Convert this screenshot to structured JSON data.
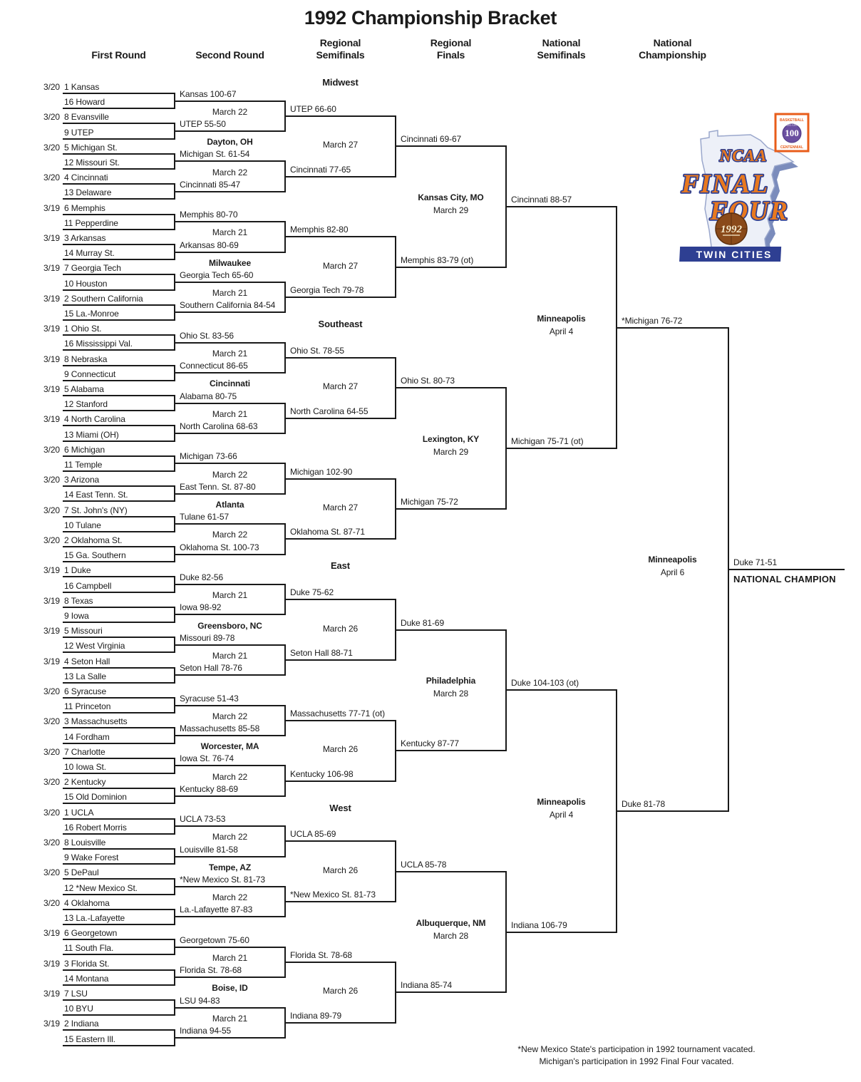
{
  "title": "1992 Championship Bracket",
  "column_headers": [
    {
      "lines": [
        "First Round"
      ]
    },
    {
      "lines": [
        "Second Round"
      ]
    },
    {
      "lines": [
        "Regional",
        "Semifinals"
      ]
    },
    {
      "lines": [
        "Regional",
        "Finals"
      ]
    },
    {
      "lines": [
        "National",
        "Semifinals"
      ]
    },
    {
      "lines": [
        "National",
        "Championship"
      ]
    }
  ],
  "regions": [
    {
      "name": "Midwest",
      "games": [
        {
          "date": "3/20",
          "team1": "1 Kansas",
          "team2": "16 Howard",
          "winner": "Kansas 100-67"
        },
        {
          "date": "3/20",
          "team1": "8 Evansville",
          "team2": "9 UTEP",
          "winner": "UTEP 55-50"
        },
        {
          "date": "3/20",
          "team1": "5 Michigan St.",
          "team2": "12 Missouri St.",
          "winner": "Michigan St. 61-54"
        },
        {
          "date": "3/20",
          "team1": "4 Cincinnati",
          "team2": "13 Delaware",
          "winner": "Cincinnati 85-47"
        },
        {
          "date": "3/19",
          "team1": "6 Memphis",
          "team2": "11 Pepperdine",
          "winner": "Memphis 80-70"
        },
        {
          "date": "3/19",
          "team1": "3 Arkansas",
          "team2": "14 Murray St.",
          "winner": "Arkansas 80-69"
        },
        {
          "date": "3/19",
          "team1": "7 Georgia Tech",
          "team2": "10 Houston",
          "winner": "Georgia Tech 65-60"
        },
        {
          "date": "3/19",
          "team1": "2 Southern California",
          "team2": "15 La.-Monroe",
          "winner": "Southern California 84-54"
        }
      ],
      "round2": [
        {
          "date": "March 22",
          "winner": "UTEP 66-60"
        },
        {
          "date": "March 22",
          "winner": "Cincinnati 77-65"
        },
        {
          "date": "March 21",
          "winner": "Memphis 82-80"
        },
        {
          "date": "March 21",
          "winner": "Georgia Tech 79-78"
        }
      ],
      "semifinals": [
        {
          "site": "Dayton, OH",
          "date": "March 27",
          "winner": "Cincinnati 69-67"
        },
        {
          "site": "Milwaukee",
          "date": "March 27",
          "winner": "Memphis 83-79 (ot)"
        }
      ],
      "final": {
        "site_lines": [
          "Kansas City, MO",
          "March 29"
        ],
        "winner": "Cincinnati 88-57"
      }
    },
    {
      "name": "Southeast",
      "games": [
        {
          "date": "3/19",
          "team1": "1 Ohio St.",
          "team2": "16 Mississippi Val.",
          "winner": "Ohio St. 83-56"
        },
        {
          "date": "3/19",
          "team1": "8 Nebraska",
          "team2": "9 Connecticut",
          "winner": "Connecticut 86-65"
        },
        {
          "date": "3/19",
          "team1": "5 Alabama",
          "team2": "12 Stanford",
          "winner": "Alabama 80-75"
        },
        {
          "date": "3/19",
          "team1": "4 North Carolina",
          "team2": "13 Miami (OH)",
          "winner": "North Carolina 68-63"
        },
        {
          "date": "3/20",
          "team1": "6 Michigan",
          "team2": "11 Temple",
          "winner": "Michigan 73-66"
        },
        {
          "date": "3/20",
          "team1": "3 Arizona",
          "team2": "14 East Tenn. St.",
          "winner": "East Tenn. St. 87-80"
        },
        {
          "date": "3/20",
          "team1": "7 St. John's (NY)",
          "team2": "10 Tulane",
          "winner": "Tulane 61-57"
        },
        {
          "date": "3/20",
          "team1": "2 Oklahoma St.",
          "team2": "15 Ga. Southern",
          "winner": "Oklahoma St. 100-73"
        }
      ],
      "round2": [
        {
          "date": "March 21",
          "winner": "Ohio St. 78-55"
        },
        {
          "date": "March 21",
          "winner": "North Carolina 64-55"
        },
        {
          "date": "March 22",
          "winner": "Michigan 102-90"
        },
        {
          "date": "March 22",
          "winner": "Oklahoma St. 87-71"
        }
      ],
      "semifinals": [
        {
          "site": "Cincinnati",
          "date": "March 27",
          "winner": "Ohio St. 80-73"
        },
        {
          "site": "Atlanta",
          "date": "March 27",
          "winner": "Michigan 75-72"
        }
      ],
      "final": {
        "site_lines": [
          "Lexington, KY",
          "March 29"
        ],
        "winner": "Michigan 75-71 (ot)"
      }
    },
    {
      "name": "East",
      "games": [
        {
          "date": "3/19",
          "team1": "1 Duke",
          "team2": "16 Campbell",
          "winner": "Duke 82-56"
        },
        {
          "date": "3/19",
          "team1": "8 Texas",
          "team2": "9 Iowa",
          "winner": "Iowa 98-92"
        },
        {
          "date": "3/19",
          "team1": "5 Missouri",
          "team2": "12 West Virginia",
          "winner": "Missouri 89-78"
        },
        {
          "date": "3/19",
          "team1": "4 Seton Hall",
          "team2": "13 La Salle",
          "winner": "Seton Hall 78-76"
        },
        {
          "date": "3/20",
          "team1": "6 Syracuse",
          "team2": "11 Princeton",
          "winner": "Syracuse 51-43"
        },
        {
          "date": "3/20",
          "team1": "3 Massachusetts",
          "team2": "14 Fordham",
          "winner": "Massachusetts 85-58"
        },
        {
          "date": "3/20",
          "team1": "7 Charlotte",
          "team2": "10 Iowa St.",
          "winner": "Iowa St. 76-74"
        },
        {
          "date": "3/20",
          "team1": "2 Kentucky",
          "team2": "15 Old Dominion",
          "winner": "Kentucky 88-69"
        }
      ],
      "round2": [
        {
          "date": "March 21",
          "winner": "Duke 75-62"
        },
        {
          "date": "March 21",
          "winner": "Seton Hall 88-71"
        },
        {
          "date": "March 22",
          "winner": "Massachusetts 77-71 (ot)"
        },
        {
          "date": "March 22",
          "winner": "Kentucky 106-98"
        }
      ],
      "semifinals": [
        {
          "site": "Greensboro, NC",
          "date": "March 26",
          "winner": "Duke 81-69"
        },
        {
          "site": "Worcester, MA",
          "date": "March 26",
          "winner": "Kentucky 87-77"
        }
      ],
      "final": {
        "site_lines": [
          "Philadelphia",
          "March 28"
        ],
        "winner": "Duke 104-103 (ot)"
      }
    },
    {
      "name": "West",
      "games": [
        {
          "date": "3/20",
          "team1": "1 UCLA",
          "team2": "16 Robert Morris",
          "winner": "UCLA 73-53"
        },
        {
          "date": "3/20",
          "team1": "8 Louisville",
          "team2": "9 Wake Forest",
          "winner": "Louisville 81-58"
        },
        {
          "date": "3/20",
          "team1": "5 DePaul",
          "team2": "12 *New Mexico St.",
          "winner": "*New Mexico St. 81-73"
        },
        {
          "date": "3/20",
          "team1": "4 Oklahoma",
          "team2": "13 La.-Lafayette",
          "winner": "La.-Lafayette 87-83"
        },
        {
          "date": "3/19",
          "team1": "6 Georgetown",
          "team2": "11 South Fla.",
          "winner": "Georgetown 75-60"
        },
        {
          "date": "3/19",
          "team1": "3 Florida St.",
          "team2": "14 Montana",
          "winner": "Florida St. 78-68"
        },
        {
          "date": "3/19",
          "team1": "7 LSU",
          "team2": "10 BYU",
          "winner": "LSU 94-83"
        },
        {
          "date": "3/19",
          "team1": "2 Indiana",
          "team2": "15 Eastern Ill.",
          "winner": "Indiana 94-55"
        }
      ],
      "round2": [
        {
          "date": "March 22",
          "winner": "UCLA 85-69"
        },
        {
          "date": "March 22",
          "winner": "*New Mexico St. 81-73"
        },
        {
          "date": "March 21",
          "winner": "Florida St. 78-68"
        },
        {
          "date": "March 21",
          "winner": "Indiana 89-79"
        }
      ],
      "semifinals": [
        {
          "site": "Tempe, AZ",
          "date": "March 26",
          "winner": "UCLA 85-78"
        },
        {
          "site": "Boise, ID",
          "date": "March 26",
          "winner": "Indiana 85-74"
        }
      ],
      "final": {
        "site_lines": [
          "Albuquerque, NM",
          "March 28"
        ],
        "winner": "Indiana 106-79"
      }
    }
  ],
  "final_four": {
    "semifinals": [
      {
        "site_lines": [
          "Minneapolis",
          "April 4"
        ],
        "winner": "*Michigan 76-72"
      },
      {
        "site_lines": [
          "Minneapolis",
          "April 4"
        ],
        "winner": "Duke 81-78"
      }
    ],
    "championship": {
      "site_lines": [
        "Minneapolis",
        "April 6"
      ],
      "winner": "Duke 71-51",
      "champion_label": "NATIONAL CHAMPION"
    }
  },
  "footnotes": [
    "*New Mexico State's participation in 1992 tournament vacated.",
    "Michigan's participation in 1992 Final Four vacated."
  ],
  "logo": {
    "ncaa": "NCAA",
    "final": "FINAL",
    "four": "FOUR",
    "year": "1992",
    "city": "TWIN CITIES",
    "badge_top": "BASKETBALL",
    "badge_num": "100",
    "badge_years": "1891-1991",
    "badge_bottom": "CENTENNIAL"
  },
  "colors": {
    "line": "#1a1a1a",
    "logo_orange": "#e8791f",
    "logo_navy": "#2e3f92",
    "logo_state": "#edf0f8",
    "logo_state_shadow": "#6d7fb5",
    "logo_ball": "#8a4a1a",
    "badge_purple": "#6a4fa0",
    "badge_orange": "#e85d1a"
  }
}
